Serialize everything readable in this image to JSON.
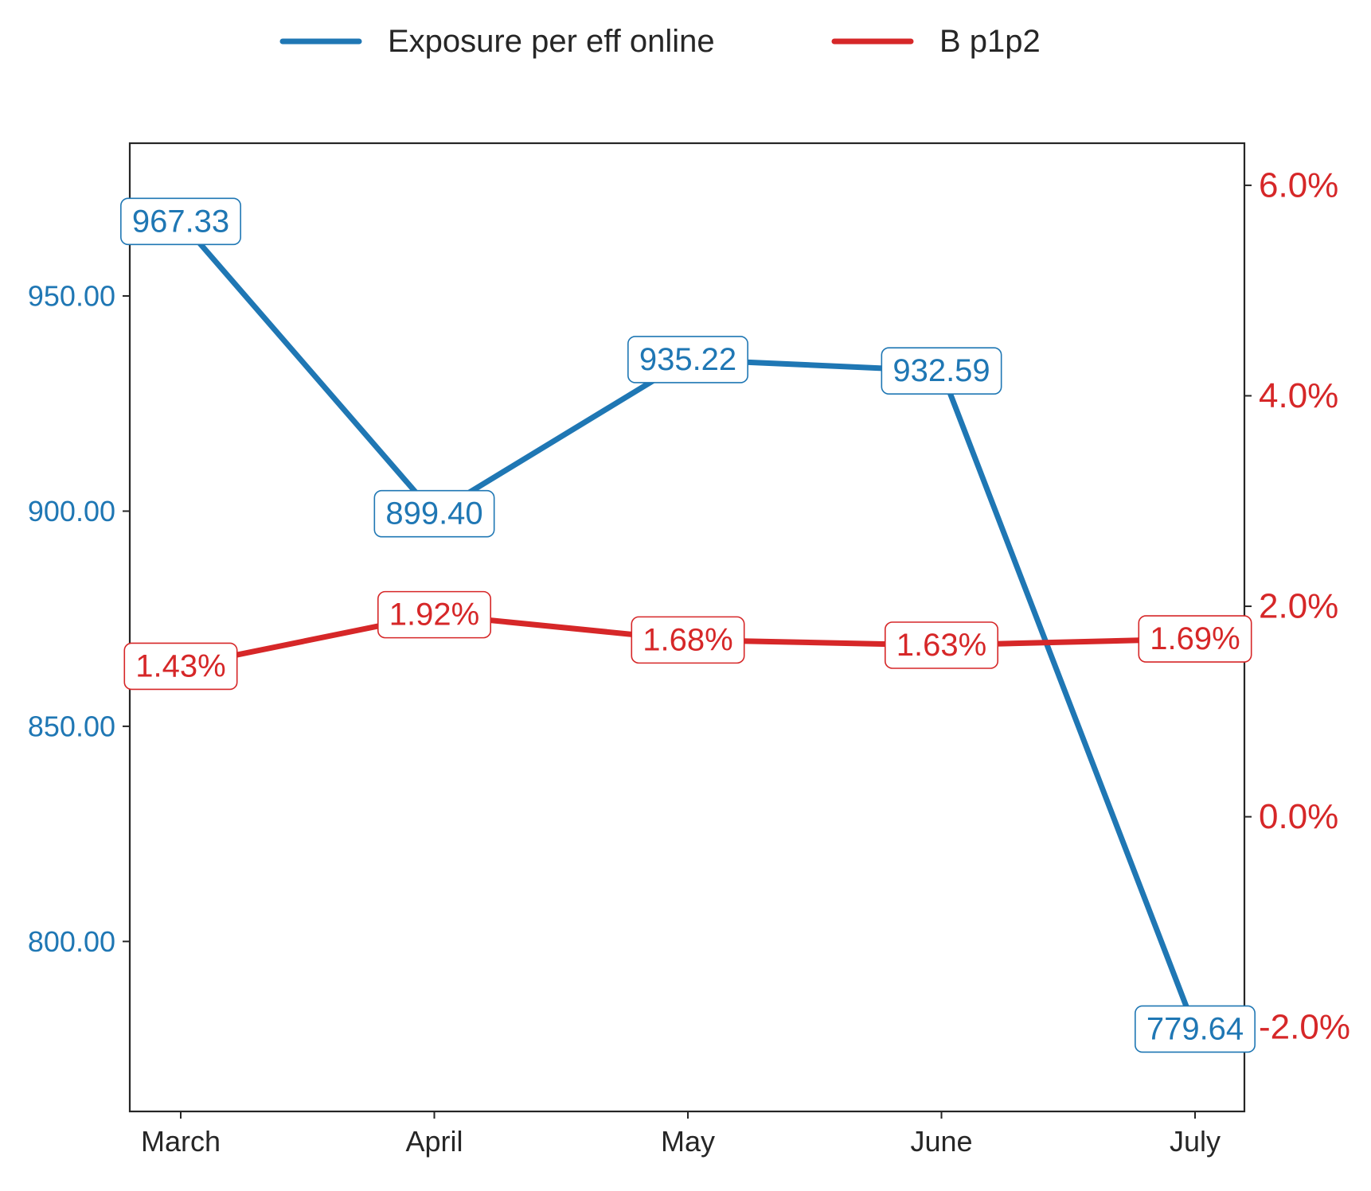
{
  "chart_data": {
    "type": "line",
    "categories": [
      "March",
      "April",
      "May",
      "June",
      "July"
    ],
    "legend": {
      "placement": "top-center"
    },
    "grid": false,
    "series": [
      {
        "name": "Exposure per eff online",
        "axis": "left",
        "color": "#1f77b4",
        "values": [
          967.33,
          899.4,
          935.22,
          932.59,
          779.64
        ],
        "labels": [
          "967.33",
          "899.40",
          "935.22",
          "932.59",
          "779.64"
        ]
      },
      {
        "name": "B p1p2",
        "axis": "right",
        "color": "#d62728",
        "values": [
          1.43,
          1.92,
          1.68,
          1.63,
          1.69
        ],
        "labels": [
          "1.43%",
          "1.92%",
          "1.68%",
          "1.63%",
          "1.69%"
        ]
      }
    ],
    "y_left": {
      "ylim": [
        760.5,
        985.5
      ],
      "ticks": [
        800,
        850,
        900,
        950
      ],
      "tick_labels": [
        "800.00",
        "850.00",
        "900.00",
        "950.00"
      ],
      "color": "#1f77b4"
    },
    "y_right": {
      "ylim": [
        -2.8,
        6.4
      ],
      "ticks": [
        -2,
        0,
        2,
        4,
        6
      ],
      "tick_labels": [
        "-2.0%",
        "0.0%",
        "2.0%",
        "4.0%",
        "6.0%"
      ],
      "color": "#d62728"
    }
  }
}
